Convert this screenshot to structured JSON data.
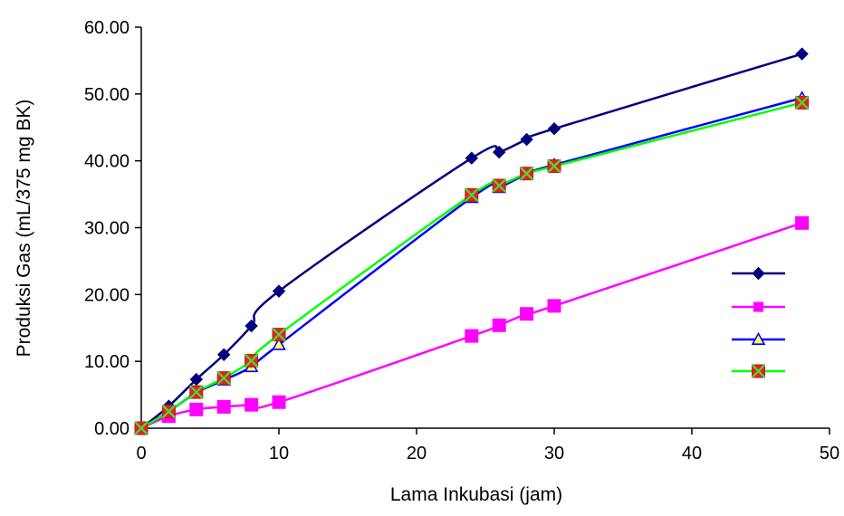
{
  "chart_data": {
    "type": "line",
    "xlabel": "Lama Inkubasi (jam)",
    "ylabel": "Produksi Gas (mL/375 mg BK)",
    "xlim": [
      0,
      50
    ],
    "ylim": [
      0,
      60
    ],
    "xticks": [
      0,
      10,
      20,
      30,
      40,
      50
    ],
    "yticks": [
      "0.00",
      "10.00",
      "20.00",
      "30.00",
      "40.00",
      "50.00",
      "60.00"
    ],
    "grid": false,
    "legend": "right",
    "series": [
      {
        "name": "",
        "color": "#00007f",
        "marker": "diamond",
        "x": [
          0,
          2,
          4,
          6,
          8,
          10,
          24,
          26,
          28,
          30,
          48
        ],
        "y": [
          0,
          3.3,
          7.3,
          11.0,
          15.3,
          20.5,
          40.4,
          41.3,
          43.2,
          44.8,
          56.0
        ]
      },
      {
        "name": "",
        "color": "#ff00ff",
        "marker": "square",
        "x": [
          0,
          2,
          4,
          6,
          8,
          10,
          24,
          26,
          28,
          30,
          48
        ],
        "y": [
          0,
          1.8,
          2.8,
          3.2,
          3.5,
          3.9,
          13.8,
          15.4,
          17.1,
          18.3,
          30.7
        ]
      },
      {
        "name": "",
        "color": "#0000ff",
        "marker": "triangle",
        "x": [
          0,
          2,
          4,
          6,
          8,
          10,
          24,
          26,
          28,
          30,
          48
        ],
        "y": [
          0,
          2.5,
          5.3,
          7.2,
          9.2,
          12.5,
          34.5,
          36.0,
          38.0,
          39.4,
          49.4
        ]
      },
      {
        "name": "",
        "color": "#00ff00",
        "marker": "x-square",
        "x": [
          0,
          2,
          4,
          6,
          8,
          10,
          24,
          26,
          28,
          30,
          48
        ],
        "y": [
          0,
          2.5,
          5.4,
          7.5,
          10.1,
          14.0,
          34.9,
          36.3,
          38.1,
          39.2,
          48.7
        ]
      }
    ]
  }
}
